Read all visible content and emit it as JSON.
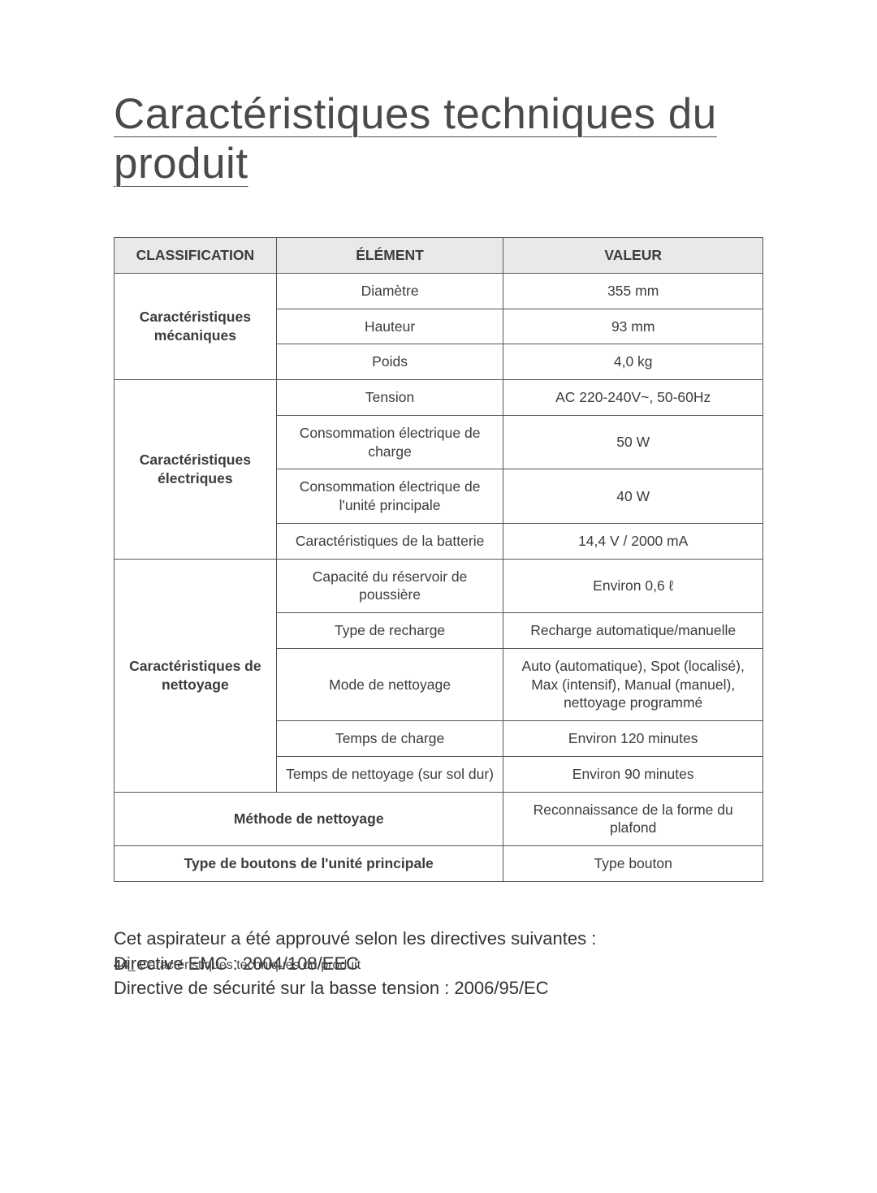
{
  "title": "Caractéristiques techniques du produit",
  "table": {
    "headers": {
      "classification": "CLASSIFICATION",
      "element": "ÉLÉMENT",
      "value": "VALEUR"
    },
    "colors": {
      "header_bg": "#e9e9e9",
      "border": "#555555",
      "text": "#3c3c3c",
      "background": "#ffffff"
    },
    "sections": [
      {
        "label": "Caractéristiques mécaniques",
        "rows": [
          {
            "element": "Diamètre",
            "value": "355 mm"
          },
          {
            "element": "Hauteur",
            "value": "93 mm"
          },
          {
            "element": "Poids",
            "value": "4,0 kg"
          }
        ]
      },
      {
        "label": "Caractéristiques électriques",
        "rows": [
          {
            "element": "Tension",
            "value": "AC 220-240V~, 50-60Hz"
          },
          {
            "element": "Consommation électrique de charge",
            "value": "50 W"
          },
          {
            "element": "Consommation électrique de l'unité principale",
            "value": "40 W"
          },
          {
            "element": "Caractéristiques de la batterie",
            "value": "14,4 V / 2000 mA"
          }
        ]
      },
      {
        "label": "Caractéristiques de nettoyage",
        "rows": [
          {
            "element": "Capacité du réservoir de poussière",
            "value": "Environ 0,6 ℓ"
          },
          {
            "element": "Type de recharge",
            "value": "Recharge automatique/manuelle"
          },
          {
            "element": "Mode de nettoyage",
            "value": "Auto (automatique), Spot (localisé), Max (intensif), Manual (manuel), nettoyage programmé"
          },
          {
            "element": "Temps de charge",
            "value": "Environ 120 minutes"
          },
          {
            "element": "Temps de nettoyage (sur sol dur)",
            "value": "Environ 90 minutes"
          }
        ]
      }
    ],
    "merged_rows": [
      {
        "label": "Méthode de nettoyage",
        "value": "Reconnaissance de la forme du plafond"
      },
      {
        "label": "Type de boutons de l'unité principale",
        "value": "Type bouton"
      }
    ]
  },
  "directives": {
    "line1": "Cet aspirateur a été approuvé selon les directives suivantes :",
    "line2": "Directive EMC : 2004/108/EEC",
    "line3": "Directive de sécurité sur la basse tension : 2006/95/EC"
  },
  "footer": {
    "page_num": "44",
    "separator": "_ ",
    "section": "Caractéristiques techniques du produit"
  }
}
